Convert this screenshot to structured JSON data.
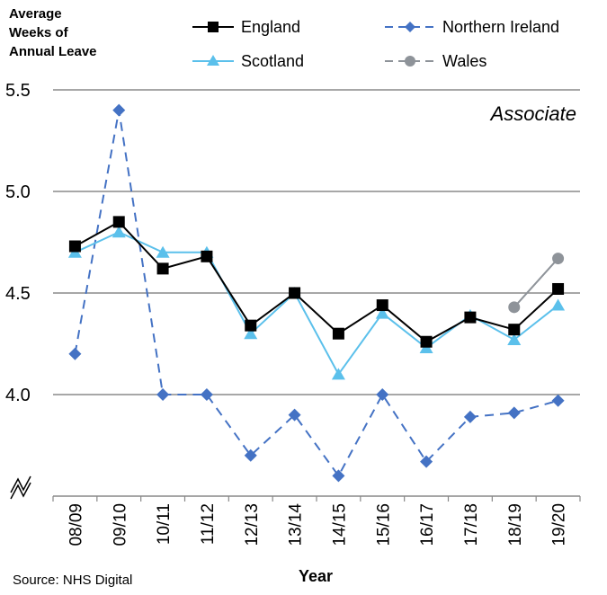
{
  "chart_data": {
    "type": "line",
    "ylabel_lines": [
      "Average",
      "Weeks of",
      "Annual Leave"
    ],
    "xlabel": "Year",
    "annotation": "Associate",
    "source": "Source: NHS Digital",
    "categories": [
      "08/09",
      "09/10",
      "10/11",
      "11/12",
      "12/13",
      "13/14",
      "14/15",
      "15/16",
      "16/17",
      "17/18",
      "18/19",
      "19/20"
    ],
    "yticks": [
      "5.5",
      "5.0",
      "4.5",
      "4.0"
    ],
    "ylim": [
      3.5,
      5.5
    ],
    "axis_break": true,
    "grid": true,
    "legend_position": "top",
    "series": [
      {
        "name": "England",
        "color": "#000000",
        "marker": "square",
        "dash": false,
        "values": [
          4.73,
          4.85,
          4.62,
          4.68,
          4.34,
          4.5,
          4.3,
          4.44,
          4.26,
          4.38,
          4.32,
          4.52
        ]
      },
      {
        "name": "Northern Ireland",
        "color": "#4472C4",
        "marker": "diamond",
        "dash": true,
        "values": [
          4.2,
          5.4,
          4.0,
          4.0,
          3.7,
          3.9,
          3.6,
          4.0,
          3.67,
          3.89,
          3.91,
          3.97
        ]
      },
      {
        "name": "Scotland",
        "color": "#5BC0EB",
        "marker": "triangle",
        "dash": false,
        "values": [
          4.7,
          4.8,
          4.7,
          4.7,
          4.3,
          4.5,
          4.1,
          4.4,
          4.23,
          4.39,
          4.27,
          4.44
        ]
      },
      {
        "name": "Wales",
        "color": "#8E9399",
        "marker": "circle",
        "dash": false,
        "values": [
          null,
          null,
          null,
          null,
          null,
          null,
          null,
          null,
          null,
          null,
          4.43,
          4.67
        ]
      }
    ]
  }
}
